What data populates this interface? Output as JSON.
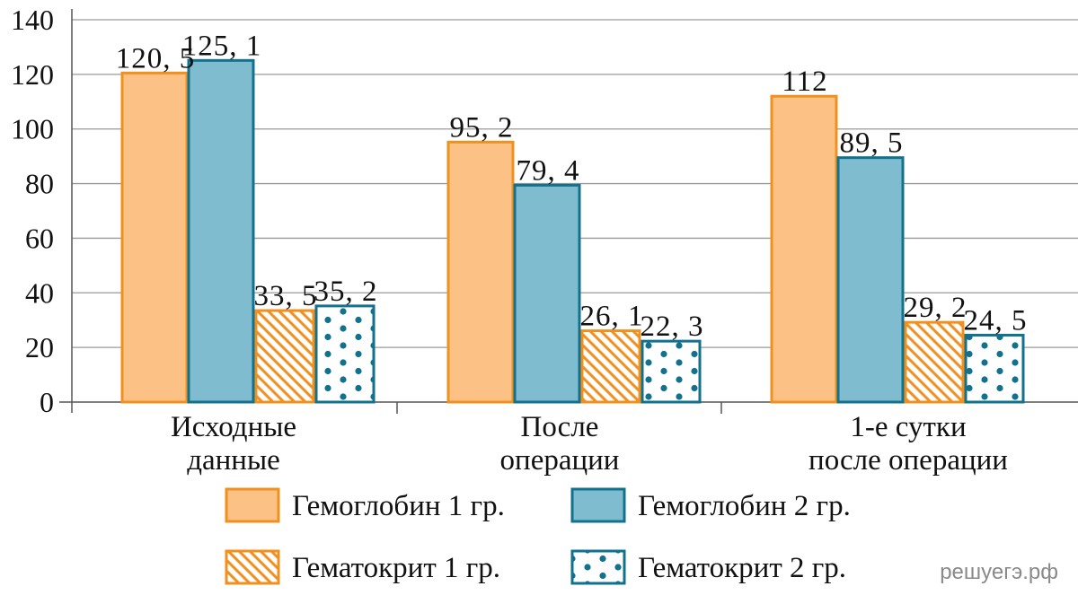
{
  "chart_data": {
    "type": "bar",
    "categories": [
      [
        "Исходные",
        "данные"
      ],
      [
        "После",
        "операции"
      ],
      [
        "1-е сутки",
        "после операции"
      ]
    ],
    "series": [
      {
        "name": "Гемоглобин 1 гр.",
        "values": [
          120.5,
          95.2,
          112
        ],
        "labels": [
          "120, 5",
          "95, 2",
          "112"
        ],
        "fill": "#fcc285",
        "stroke": "#f0901e",
        "pattern": "solid"
      },
      {
        "name": "Гемоглобин 2 гр.",
        "values": [
          125.1,
          79.4,
          89.5
        ],
        "labels": [
          "125, 1",
          "79, 4",
          "89, 5"
        ],
        "fill": "#80bcd0",
        "stroke": "#12728d",
        "pattern": "solid"
      },
      {
        "name": "Гематокрит 1 гр.",
        "values": [
          33.5,
          26.1,
          29.2
        ],
        "labels": [
          "33, 5",
          "26, 1",
          "29, 2"
        ],
        "fill": "#ffffff",
        "stroke": "#f0901e",
        "pattern": "hatch"
      },
      {
        "name": "Гематокрит 2 гр.",
        "values": [
          35.2,
          22.3,
          24.5
        ],
        "labels": [
          "35, 2",
          "22, 3",
          "24, 5"
        ],
        "fill": "#ffffff",
        "stroke": "#12728d",
        "pattern": "dots"
      }
    ],
    "ylim": [
      0,
      140
    ],
    "yticks": [
      0,
      20,
      40,
      60,
      80,
      100,
      120,
      140
    ],
    "grid": true,
    "legend_position": "bottom",
    "title": "",
    "xlabel": "",
    "ylabel": ""
  },
  "watermark": "решуегэ.рф"
}
